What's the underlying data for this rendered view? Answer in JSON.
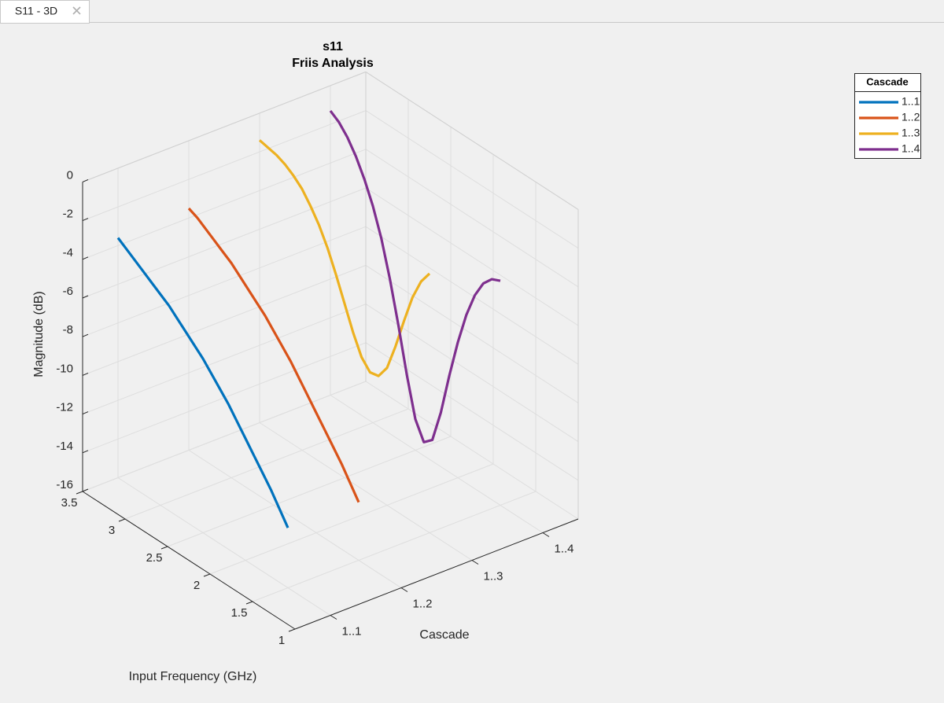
{
  "tab": {
    "label": "S11 - 3D"
  },
  "chart_data": {
    "type": "line3d",
    "title": "s11",
    "subtitle": "Friis Analysis",
    "xlabel": "Input Frequency (GHz)",
    "ylabel": "Cascade",
    "zlabel": "Magnitude (dB)",
    "x": [
      1.5,
      1.6,
      1.7,
      1.8,
      1.9,
      2.0,
      2.1,
      2.2,
      2.3,
      2.4,
      2.5,
      2.6,
      2.7,
      2.8,
      2.9,
      3.0,
      3.1,
      3.2,
      3.3,
      3.4,
      3.5
    ],
    "categories": [
      "1..1",
      "1..2",
      "1..3",
      "1..4"
    ],
    "xlim": [
      1,
      3.5
    ],
    "xticks": [
      1,
      1.5,
      2,
      2.5,
      3,
      3.5
    ],
    "zlim": [
      -16,
      0
    ],
    "zticks": [
      0,
      -2,
      -4,
      -6,
      -8,
      -10,
      -12,
      -14,
      -16
    ],
    "grid": true,
    "legend": {
      "title": "Cascade",
      "location": "northeast"
    },
    "series": [
      {
        "name": "1..1",
        "color": "#0072BD",
        "values": [
          -12.9,
          -12.2,
          -11.5,
          -10.9,
          -10.3,
          -9.7,
          -9.1,
          -8.5,
          -8.0,
          -7.5,
          -7.0,
          -6.6,
          -6.2,
          -5.8,
          -5.4,
          -5.1,
          -4.8,
          -4.5,
          -4.2,
          -3.9,
          -3.6
        ]
      },
      {
        "name": "1..2",
        "color": "#D95319",
        "values": [
          -13.0,
          -12.3,
          -11.6,
          -11.0,
          -10.4,
          -9.8,
          -9.2,
          -8.6,
          -8.0,
          -7.5,
          -7.0,
          -6.5,
          -6.1,
          -5.7,
          -5.3,
          -4.9,
          -4.6,
          -4.3,
          -4.0,
          -3.7,
          -3.5
        ]
      },
      {
        "name": "1..3",
        "color": "#EDB120",
        "values": [
          -2.6,
          -3.3,
          -4.4,
          -5.9,
          -7.5,
          -8.9,
          -9.6,
          -9.7,
          -9.2,
          -8.2,
          -7.0,
          -5.8,
          -4.7,
          -3.8,
          -3.1,
          -2.5,
          -2.1,
          -1.8,
          -1.6,
          -1.5,
          -1.4
        ]
      },
      {
        "name": "1..4",
        "color": "#7E2F8E",
        "values": [
          -4.4,
          -4.6,
          -5.1,
          -6.0,
          -7.3,
          -9.0,
          -11.0,
          -13.2,
          -14.9,
          -15.3,
          -14.4,
          -12.4,
          -10.1,
          -8.0,
          -6.2,
          -4.8,
          -3.7,
          -2.8,
          -2.1,
          -1.6,
          -1.3
        ]
      }
    ]
  }
}
